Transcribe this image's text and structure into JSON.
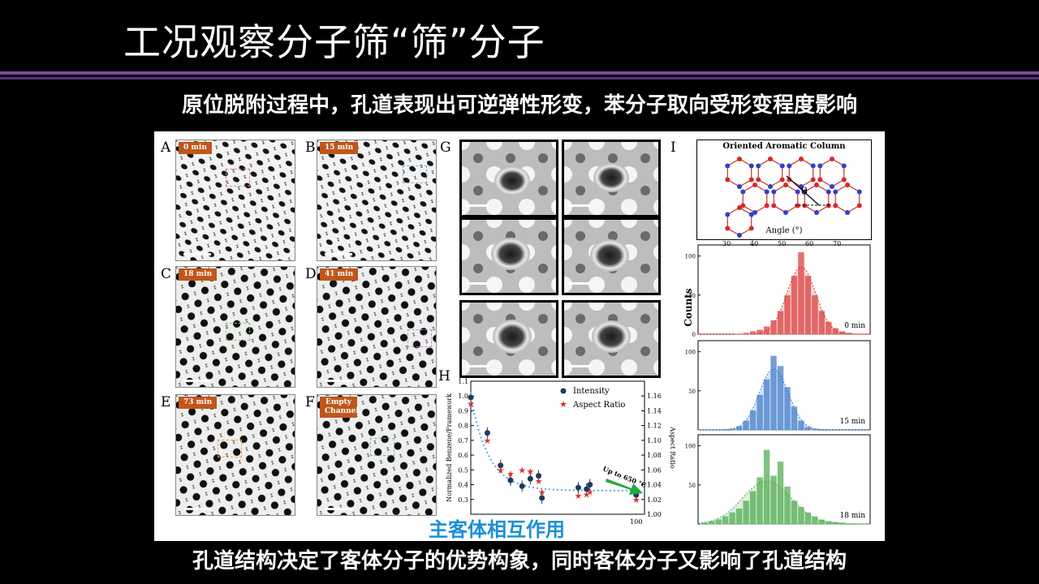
{
  "title": "工况观察分子筛“筛”分子",
  "subtitle": "原位脱附过程中，孔道表现出可逆弹性形变，苯分子取向受形变程度影响",
  "bottom_caption": "孔道结构决定了客体分子的优势构象，同时客体分子又影响了孔道结构",
  "figure": {
    "panels": [
      {
        "label": "A",
        "time": "0 min",
        "box_color": "#e07a7a"
      },
      {
        "label": "B",
        "time": "15 min",
        "box_color": "#7fa8d0"
      },
      {
        "label": "C",
        "time": "18 min",
        "box_color": "#86c46e"
      },
      {
        "label": "D",
        "time": "41 min",
        "box_color": "#c08ad0"
      },
      {
        "label": "E",
        "time": "73 min",
        "box_color": "#f0a050"
      },
      {
        "label": "F",
        "time": "Empty Channel",
        "box_color": "#6ab8b8"
      }
    ],
    "panel_g_label": "G",
    "crops": [
      {
        "border": "#d98585"
      },
      {
        "border": "#86a8c8"
      },
      {
        "border": "#7ab070"
      },
      {
        "border": "#b08ac0"
      },
      {
        "border": "#e09a50"
      },
      {
        "border": "#5aa8a8"
      }
    ],
    "panel_h_label": "H",
    "panel_i_label": "I",
    "host_guest_label": "主客体相互作用",
    "inset": {
      "title": "Oriented Aromatic Column",
      "theta": "θ",
      "xlabel": "Angle (°)",
      "ticks": [
        "30",
        "40",
        "50",
        "60",
        "70"
      ]
    },
    "hist_ylabel": "Counts"
  },
  "chart_data": [
    {
      "type": "scatter",
      "xlabel": "",
      "ylabel": "Normalized Benzene/Framework",
      "y2label": "Aspect Ratio",
      "ylim": [
        0.2,
        1.1
      ],
      "y2lim": [
        1.0,
        1.18
      ],
      "y_ticks": [
        "0.3",
        "0.4",
        "0.5",
        "0.6",
        "0.7",
        "0.8",
        "0.9",
        "1.0",
        "1.1"
      ],
      "y2_ticks": [
        "1.00",
        "1.02",
        "1.04",
        "1.06",
        "1.08",
        "1.10",
        "1.12",
        "1.14",
        "1.16"
      ],
      "x_tick": "100",
      "annotation": "Up to 650 °C",
      "legend_position": "top-right",
      "series": [
        {
          "name": "Intensity",
          "color": "#1f3a5f",
          "points": [
            [
              0,
              0.99
            ],
            [
              10,
              0.75
            ],
            [
              18,
              0.53
            ],
            [
              24,
              0.43
            ],
            [
              31,
              0.39
            ],
            [
              36,
              0.44
            ],
            [
              41,
              0.46
            ],
            [
              43,
              0.31
            ],
            [
              65,
              0.38
            ],
            [
              70,
              0.37
            ],
            [
              72,
              0.4
            ],
            [
              100,
              0.33
            ]
          ]
        },
        {
          "name": "Aspect Ratio",
          "color": "#e03030",
          "points": [
            [
              0,
              1.15
            ],
            [
              10,
              1.1
            ],
            [
              18,
              1.06
            ],
            [
              24,
              1.055
            ],
            [
              31,
              1.06
            ],
            [
              36,
              1.058
            ],
            [
              41,
              1.045
            ],
            [
              43,
              1.03
            ],
            [
              65,
              1.025
            ],
            [
              70,
              1.027
            ],
            [
              72,
              1.03
            ],
            [
              100,
              1.02
            ]
          ]
        }
      ],
      "fit": {
        "color": "#5aa8d8"
      }
    },
    {
      "type": "bar",
      "xlim": [
        25,
        75
      ],
      "ylim": [
        0,
        110
      ],
      "x_ticks": [
        "30",
        "40",
        "50",
        "60",
        "70"
      ],
      "y_ticks": [
        "0",
        "50",
        "100"
      ],
      "xlabel": "Angle (°)",
      "ylabel": "Counts",
      "series": [
        {
          "name": "0 min",
          "color": "#d93535",
          "bin_start": 36,
          "bin_width": 2,
          "values": [
            1,
            2,
            4,
            6,
            10,
            18,
            30,
            50,
            75,
            105,
            75,
            50,
            30,
            16,
            8,
            4,
            2,
            1,
            1
          ]
        },
        {
          "name": "15 min",
          "color": "#3a78c8",
          "bin_start": 34,
          "bin_width": 2,
          "values": [
            2,
            5,
            12,
            25,
            45,
            65,
            95,
            82,
            55,
            30,
            12,
            4,
            2
          ]
        },
        {
          "name": "18 min",
          "color": "#4aa84a",
          "bin_start": 26,
          "bin_width": 2,
          "values": [
            2,
            4,
            6,
            10,
            15,
            20,
            30,
            42,
            60,
            95,
            62,
            80,
            48,
            30,
            22,
            15,
            10,
            6,
            4,
            3,
            2
          ]
        }
      ]
    }
  ]
}
